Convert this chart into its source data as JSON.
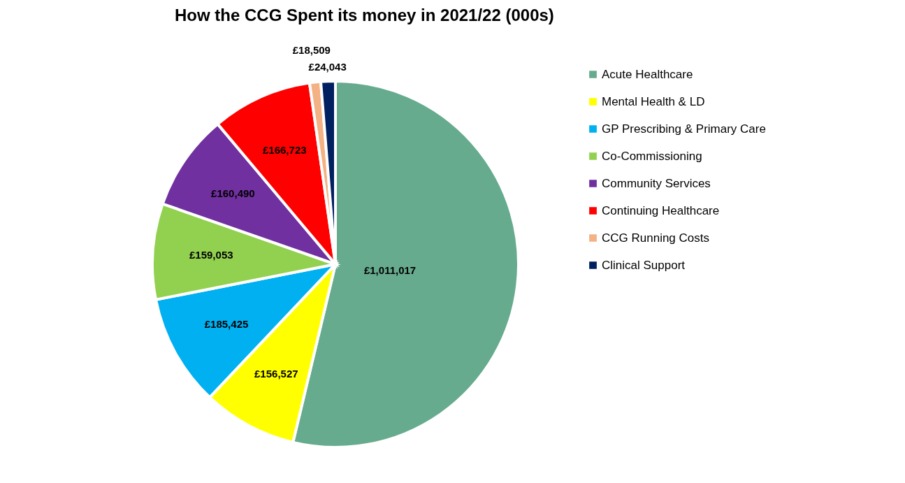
{
  "chart_data": {
    "type": "pie",
    "title": "How the CCG Spent its money in 2021/22 (000s)",
    "categories": [
      "Acute Healthcare",
      "Mental Health & LD",
      "GP Prescribing & Primary Care",
      "Co-Commissioning",
      "Community Services",
      "Continuing Healthcare",
      "CCG Running Costs",
      "Clinical Support"
    ],
    "values": [
      1011017,
      156527,
      185425,
      159053,
      160490,
      166723,
      18509,
      24043
    ],
    "value_labels": [
      "£1,011,017",
      "£156,527",
      "£185,425",
      "£159,053",
      "£160,490",
      "£166,723",
      "£18,509",
      "£24,043"
    ],
    "colors": [
      "#67ab8f",
      "#ffff00",
      "#00b0f0",
      "#92d050",
      "#7030a0",
      "#ff0000",
      "#f4b183",
      "#002060"
    ],
    "legend": "right"
  }
}
